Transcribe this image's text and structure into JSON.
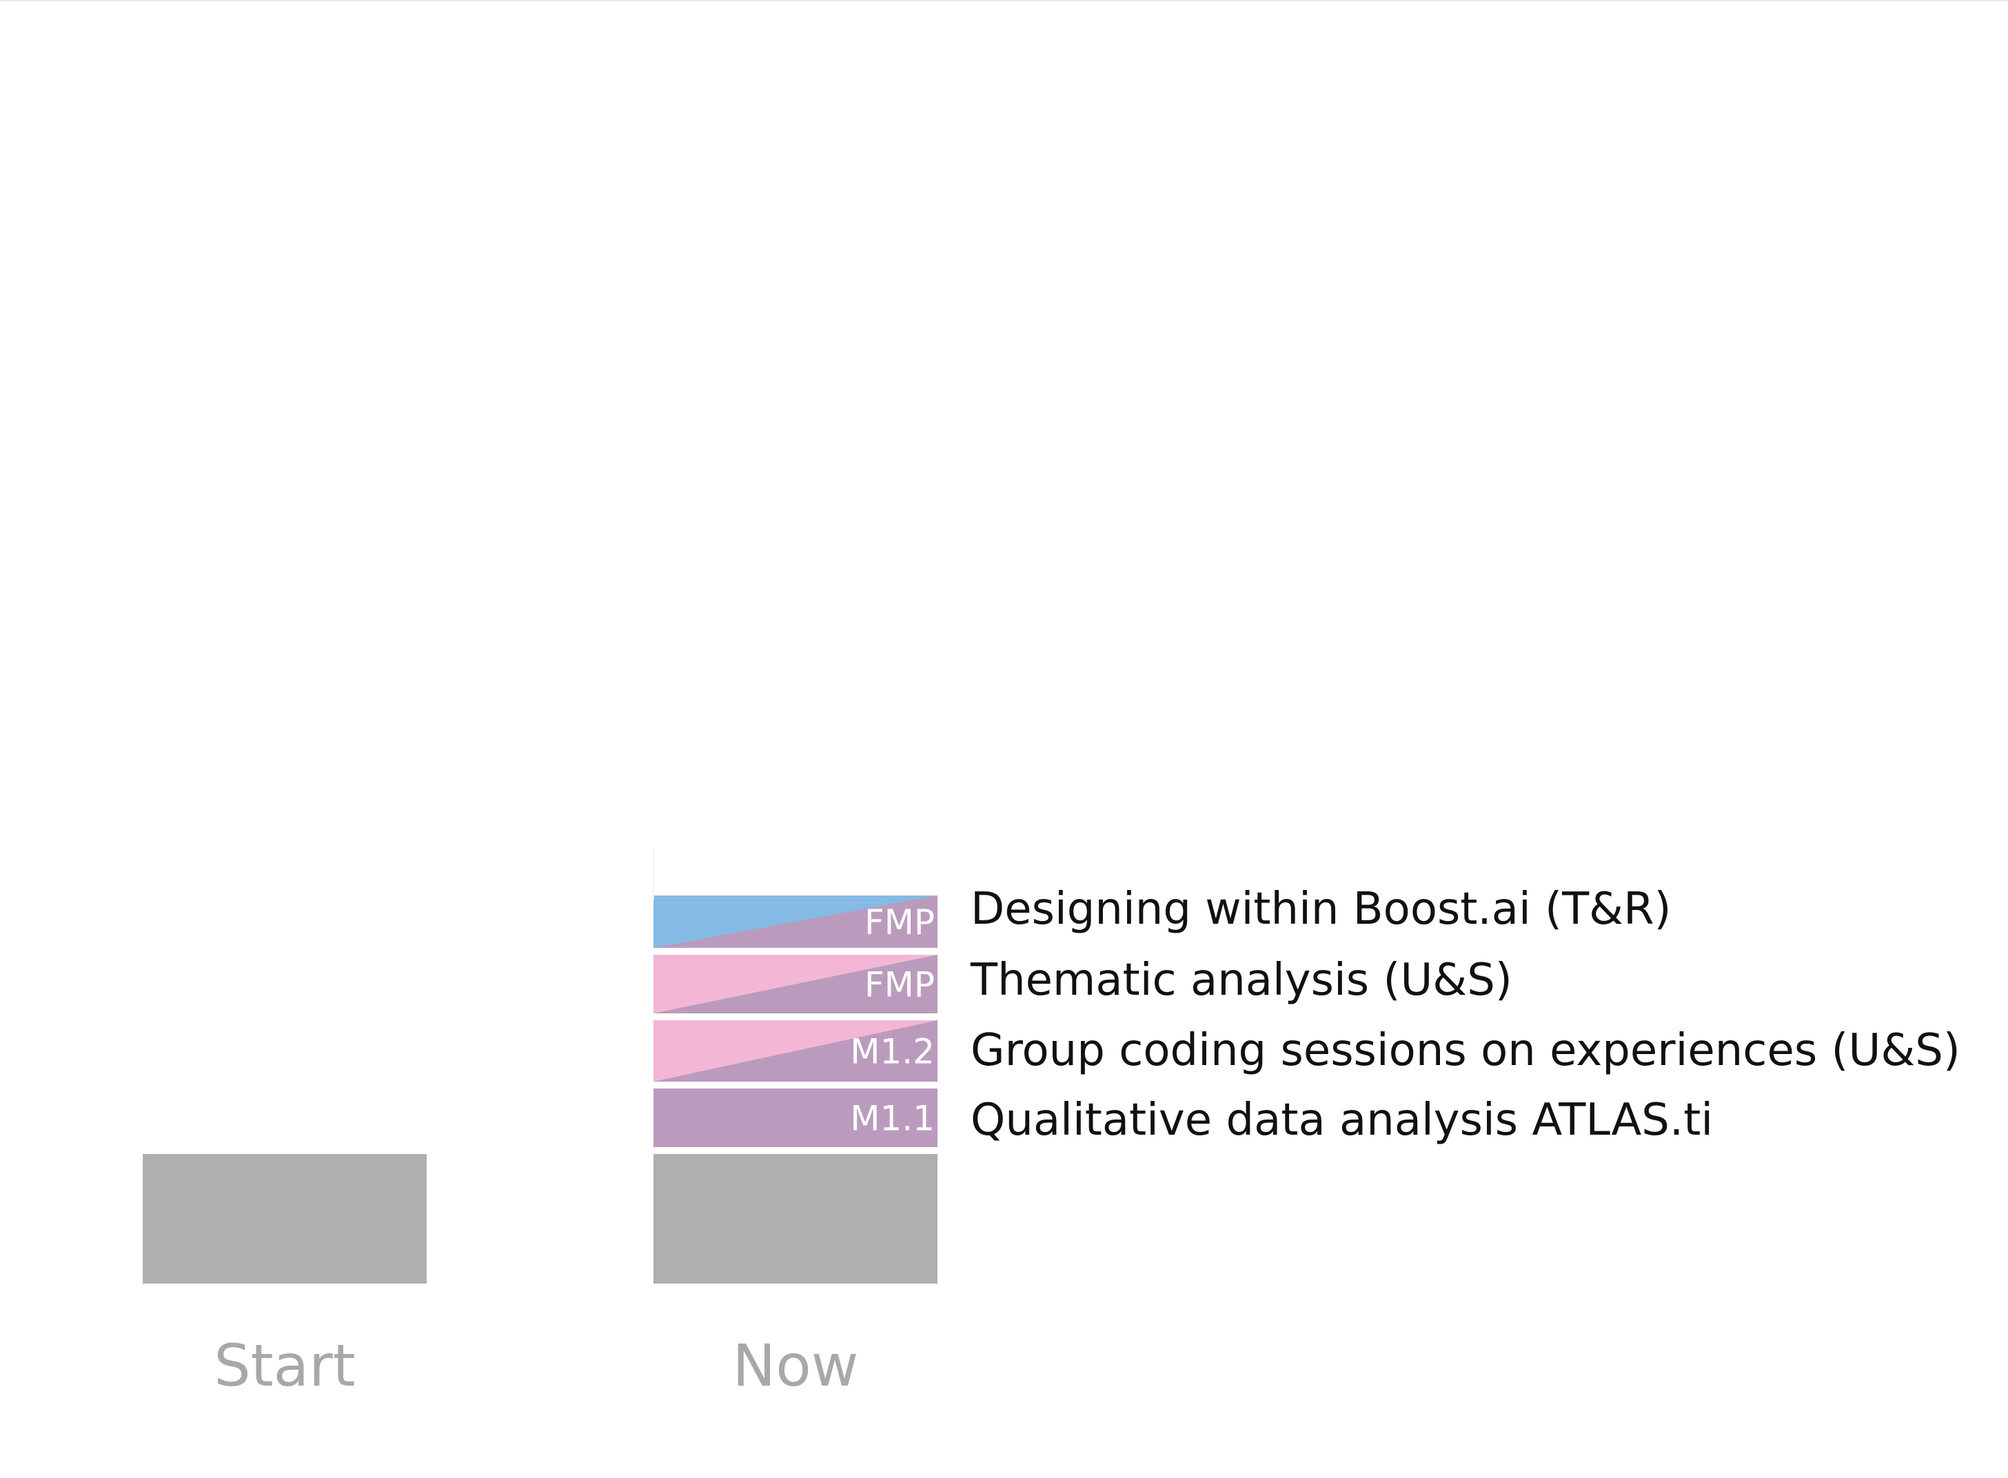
{
  "chart_data": {
    "type": "bar",
    "stacked": true,
    "categories": [
      "Start",
      "Now"
    ],
    "series": [
      {
        "values": [
          1,
          1
        ],
        "color": "#afafaf"
      },
      {
        "label": "M1.1",
        "name": "Qualitative data analysis ATLAS.ti",
        "values": [
          0,
          1
        ],
        "colors": [
          "#ba9bbd",
          "#ba9bbd"
        ]
      },
      {
        "label": "M1.2",
        "name": "Group coding sessions on experiences (U&S)",
        "values": [
          0,
          1
        ],
        "colors": [
          "#f4b6d5",
          "#ba9bbd"
        ]
      },
      {
        "label": "FMP",
        "name": "Thematic analysis (U&S)",
        "values": [
          0,
          1
        ],
        "colors": [
          "#f4b6d5",
          "#ba9bbd"
        ]
      },
      {
        "label": "FMP",
        "name": "Designing within Boost.ai (T&R)",
        "values": [
          0,
          1
        ],
        "colors": [
          "#85bae5",
          "#ba9bbd"
        ]
      }
    ],
    "legend": "right",
    "grid": false
  }
}
